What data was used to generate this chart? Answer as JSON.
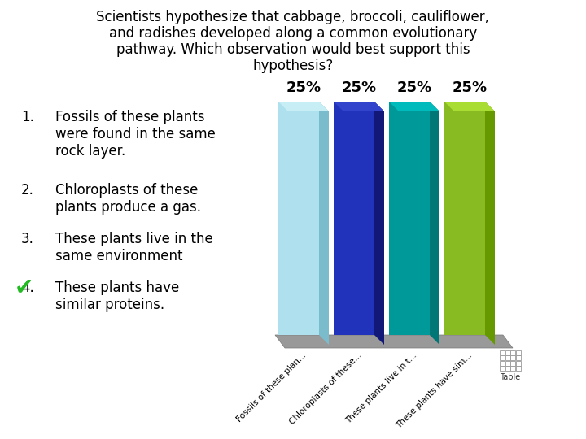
{
  "title_line1": "Scientists hypothesize that cabbage, broccoli, cauliflower,",
  "title_line2": "and radishes developed along a common evolutionary",
  "title_line3": "pathway. Which observation would best support this",
  "title_line4": "hypothesis?",
  "bar_colors": [
    "#aee0ee",
    "#2233bb",
    "#009999",
    "#88bb22"
  ],
  "bar_side_colors": [
    "#7bbccc",
    "#111877",
    "#007777",
    "#669900"
  ],
  "bar_top_colors": [
    "#c8eef5",
    "#3344cc",
    "#00bbbb",
    "#aadd33"
  ],
  "bar_labels": [
    "Fossils of these plan...",
    "Chloroplasts of these...",
    "These plants live in t...",
    "These plants have sim..."
  ],
  "value_labels": [
    "25%",
    "25%",
    "25%",
    "25%"
  ],
  "background_color": "#ffffff",
  "text_color": "#000000",
  "platform_color": "#999999",
  "platform_edge_color": "#777777",
  "checkmark_color": "#22bb22",
  "table_border_color": "#999999"
}
